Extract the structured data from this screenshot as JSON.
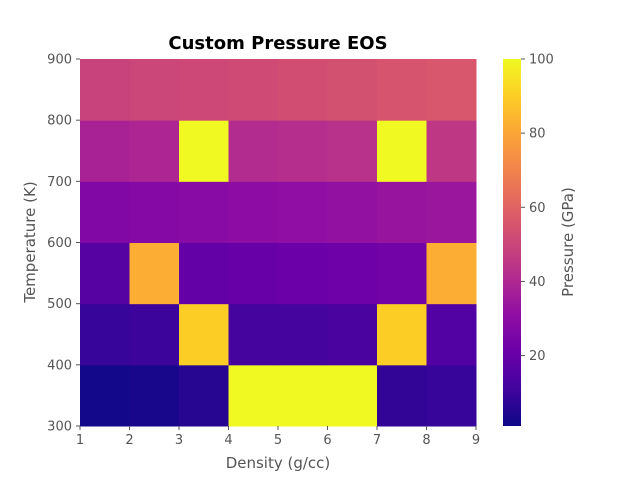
{
  "chart_data": {
    "type": "heatmap",
    "title": "Custom Pressure EOS",
    "xlabel": "Density (g/cc)",
    "ylabel": "Temperature (K)",
    "colorbar_label": "Pressure (GPa)",
    "colormap": "plasma",
    "x_edges": [
      1,
      2,
      3,
      4,
      5,
      6,
      7,
      8,
      9
    ],
    "y_edges": [
      300,
      400,
      500,
      600,
      700,
      800,
      900
    ],
    "xlim": [
      1,
      9
    ],
    "ylim": [
      300,
      900
    ],
    "x_ticks": [
      "1",
      "2",
      "3",
      "4",
      "5",
      "6",
      "7",
      "8",
      "9"
    ],
    "y_ticks": [
      "300",
      "400",
      "500",
      "600",
      "700",
      "800",
      "900"
    ],
    "clim": [
      1,
      100
    ],
    "colorbar_ticks": [
      "20",
      "40",
      "60",
      "80",
      "100"
    ],
    "colorbar_tick_values": [
      20,
      40,
      60,
      80,
      100
    ],
    "values": [
      [
        2,
        3,
        6,
        100,
        100,
        100,
        8,
        9
      ],
      [
        9,
        10,
        90,
        12,
        12,
        13,
        90,
        15
      ],
      [
        16,
        82,
        19,
        20,
        21,
        22,
        23,
        82
      ],
      [
        27,
        28,
        29,
        30,
        31,
        32,
        33,
        34
      ],
      [
        38,
        39,
        100,
        41,
        42,
        43,
        100,
        45
      ],
      [
        49,
        50,
        51,
        52,
        53,
        54,
        55,
        56
      ]
    ]
  }
}
